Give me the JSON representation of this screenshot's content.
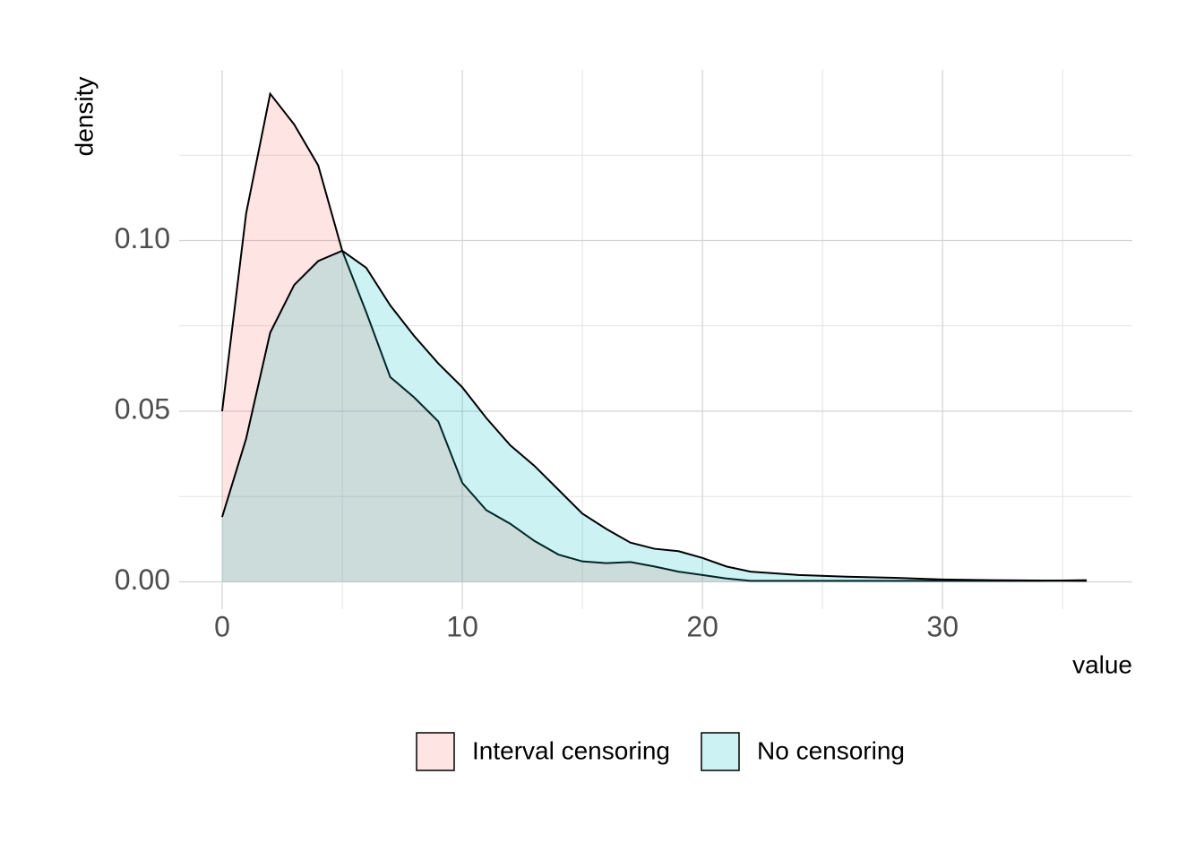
{
  "chart_data": {
    "type": "density",
    "x_label": "value",
    "y_label": "density",
    "x": [
      0,
      1,
      2,
      3,
      4,
      5,
      6,
      7,
      8,
      9,
      10,
      11,
      12,
      13,
      14,
      15,
      16,
      17,
      18,
      19,
      20,
      21,
      22,
      24,
      26,
      28,
      30,
      32,
      34,
      36
    ],
    "series": [
      {
        "name": "Interval censoring",
        "color": "#F8766D",
        "values": [
          0.05,
          0.108,
          0.143,
          0.134,
          0.122,
          0.097,
          0.079,
          0.06,
          0.054,
          0.047,
          0.029,
          0.021,
          0.017,
          0.012,
          0.008,
          0.006,
          0.0055,
          0.0058,
          0.0045,
          0.003,
          0.002,
          0.001,
          0.0003,
          0.0003,
          0.0003,
          0.0003,
          0.0003,
          0.0003,
          0.0003,
          0.0005
        ]
      },
      {
        "name": "No censoring",
        "color": "#00BFC4",
        "values": [
          0.019,
          0.042,
          0.073,
          0.087,
          0.094,
          0.097,
          0.092,
          0.081,
          0.072,
          0.064,
          0.057,
          0.048,
          0.04,
          0.034,
          0.027,
          0.02,
          0.0155,
          0.0115,
          0.0097,
          0.009,
          0.007,
          0.0045,
          0.003,
          0.002,
          0.0015,
          0.0012,
          0.0007,
          0.0005,
          0.0004,
          0.0003
        ]
      }
    ],
    "xlim": [
      -1.79,
      37.9
    ],
    "ylim": [
      -0.008,
      0.15
    ],
    "xticks": [
      0,
      10,
      20,
      30
    ],
    "yticks": [
      {
        "value": 0,
        "label": "0.00"
      },
      {
        "value": 0.05,
        "label": "0.05"
      },
      {
        "value": 0.1,
        "label": "0.10"
      }
    ],
    "x_minor_grid": [
      5,
      15,
      25,
      35
    ],
    "y_minor_grid": [
      0.025,
      0.075,
      0.125
    ],
    "grid": true,
    "legend": "bottom"
  }
}
